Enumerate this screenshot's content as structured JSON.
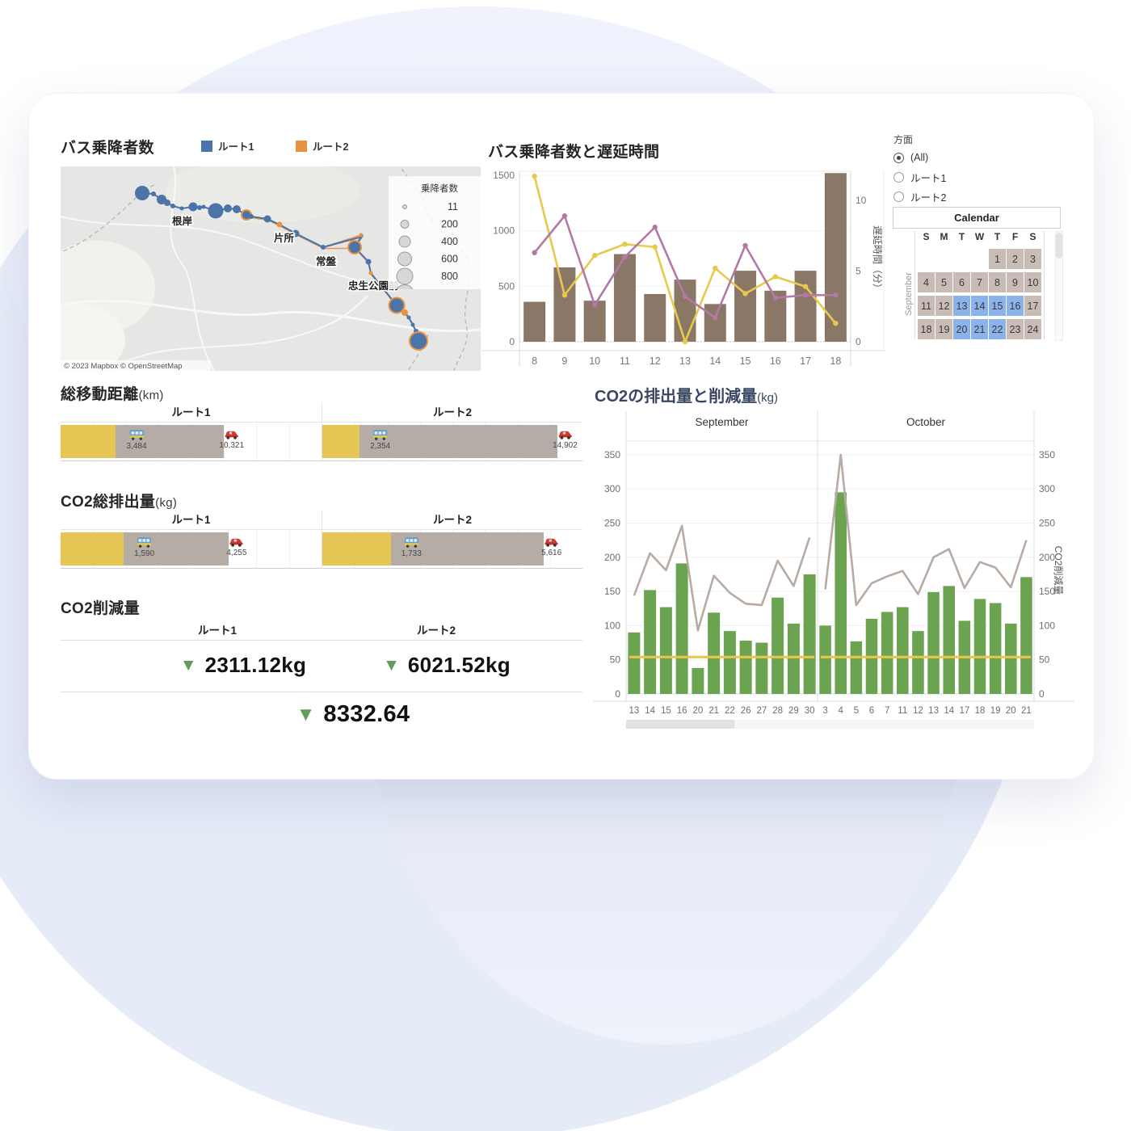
{
  "colors": {
    "route1_blue": "#4b74a9",
    "route2_orange": "#e79342",
    "ridership_bar_brown": "#8b7765",
    "delay_yellow_line": "#e7c94f",
    "delay_purple_line": "#b279a7",
    "emission_bar_green": "#6ba351",
    "reduction_line_gray": "#b7aba3",
    "reference_line_yellow": "#e9c44f",
    "calendar_selected_blue": "#8cb3e9",
    "calendar_cell_tan": "#c9bcb4",
    "bullet_yellow": "#e5c553",
    "bullet_gray": "#b5aca6",
    "kpi_triangle_green": "#5f9e58"
  },
  "map_section": {
    "title": "バス乗降者数",
    "legend": [
      {
        "label": "ルート1"
      },
      {
        "label": "ルート2"
      }
    ],
    "size_legend": {
      "title": "乗降者数",
      "items": [
        "11",
        "200",
        "400",
        "600",
        "800"
      ]
    },
    "station_labels": [
      "根岸",
      "片所",
      "常盤",
      "忠生公園前"
    ],
    "attribution": "© 2023 Mapbox © OpenStreetMap"
  },
  "delay_chart": {
    "type": "bar+line",
    "title": "バス乗降者数と遅延時間",
    "categories": [
      "8",
      "9",
      "10",
      "11",
      "12",
      "13",
      "14",
      "15",
      "16",
      "17",
      "18"
    ],
    "bars": {
      "name": "乗降者数",
      "values": [
        360,
        670,
        370,
        790,
        430,
        560,
        340,
        640,
        460,
        640,
        1520
      ]
    },
    "lines": [
      {
        "name": "delay-yellow",
        "axis": "right",
        "values": [
          11.7,
          3.3,
          6.1,
          6.9,
          6.7,
          0,
          5.2,
          3.4,
          4.6,
          3.9,
          1.3
        ]
      },
      {
        "name": "delay-purple",
        "axis": "right",
        "values": [
          6.3,
          8.9,
          2.6,
          6.0,
          8.1,
          3.2,
          1.7,
          6.8,
          3.1,
          3.3,
          3.3
        ]
      }
    ],
    "left_ticks": [
      0,
      500,
      1000,
      1500
    ],
    "right_ticks": [
      0,
      5,
      10
    ],
    "right_axis_label": "遅延時間（分）",
    "left_ylim": [
      0,
      1545
    ],
    "right_ylim": [
      0,
      12.1
    ]
  },
  "filters": {
    "label": "方面",
    "options": [
      {
        "label": "(All)",
        "selected": true
      },
      {
        "label": "ルート1",
        "selected": false
      },
      {
        "label": "ルート2",
        "selected": false
      }
    ]
  },
  "calendar": {
    "title": "Calendar",
    "month_label": "September",
    "weekdays": [
      "S",
      "M",
      "T",
      "W",
      "T",
      "F",
      "S"
    ],
    "rows": [
      [
        "",
        "",
        "",
        "",
        "1",
        "2",
        "3"
      ],
      [
        "4",
        "5",
        "6",
        "7",
        "8",
        "9",
        "10"
      ],
      [
        "11",
        "12",
        "13",
        "14",
        "15",
        "16",
        "17"
      ],
      [
        "18",
        "19",
        "20",
        "21",
        "22",
        "23",
        "24"
      ]
    ],
    "selected_days": [
      13,
      14,
      15,
      16,
      20,
      21,
      22
    ]
  },
  "distance_section": {
    "title": "総移動距離",
    "unit": "(km)",
    "axis_max": 16500,
    "panels": [
      {
        "label": "ルート1",
        "bus_label": "3,484",
        "bus": 3484,
        "car_label": "10,321",
        "car": 10321
      },
      {
        "label": "ルート2",
        "bus_label": "2,354",
        "bus": 2354,
        "car_label": "14,902",
        "car": 14902
      }
    ]
  },
  "co2_section": {
    "title": "CO2総排出量",
    "unit": "(kg)",
    "axis_max": 6600,
    "panels": [
      {
        "label": "ルート1",
        "bus_label": "1,590",
        "bus": 1590,
        "car_label": "4,255",
        "car": 4255
      },
      {
        "label": "ルート2",
        "bus_label": "1,733",
        "bus": 1733,
        "car_label": "5,616",
        "car": 5616
      }
    ]
  },
  "reduction_section": {
    "title": "CO2削減量",
    "columns": [
      "ルート1",
      "ルート2"
    ],
    "values": [
      "2311.12kg",
      "6021.52kg"
    ],
    "total": "8332.64"
  },
  "big_chart": {
    "type": "bar+line",
    "title": "CO2の排出量と削減量",
    "unit": "(kg)",
    "right_axis_label": "CO2削減量",
    "y_ticks": [
      0,
      50,
      100,
      150,
      200,
      250,
      300,
      350
    ],
    "ylim": [
      0,
      370
    ],
    "reference_value": 54,
    "panels": [
      {
        "name": "September",
        "dates": [
          13,
          14,
          15,
          16,
          20,
          21,
          22,
          26,
          27,
          28,
          29,
          30
        ],
        "bars": [
          90,
          152,
          127,
          191,
          38,
          119,
          92,
          78,
          75,
          141,
          103,
          175
        ],
        "line": [
          144,
          206,
          181,
          246,
          93,
          173,
          148,
          132,
          130,
          195,
          158,
          229
        ]
      },
      {
        "name": "October",
        "dates": [
          3,
          4,
          5,
          6,
          7,
          11,
          12,
          13,
          14,
          17,
          18,
          19,
          20,
          21
        ],
        "bars": [
          100,
          295,
          77,
          110,
          120,
          127,
          92,
          149,
          158,
          107,
          139,
          133,
          103,
          171
        ],
        "line": [
          153,
          350,
          130,
          162,
          172,
          180,
          146,
          200,
          212,
          155,
          193,
          185,
          156,
          225
        ]
      }
    ]
  }
}
